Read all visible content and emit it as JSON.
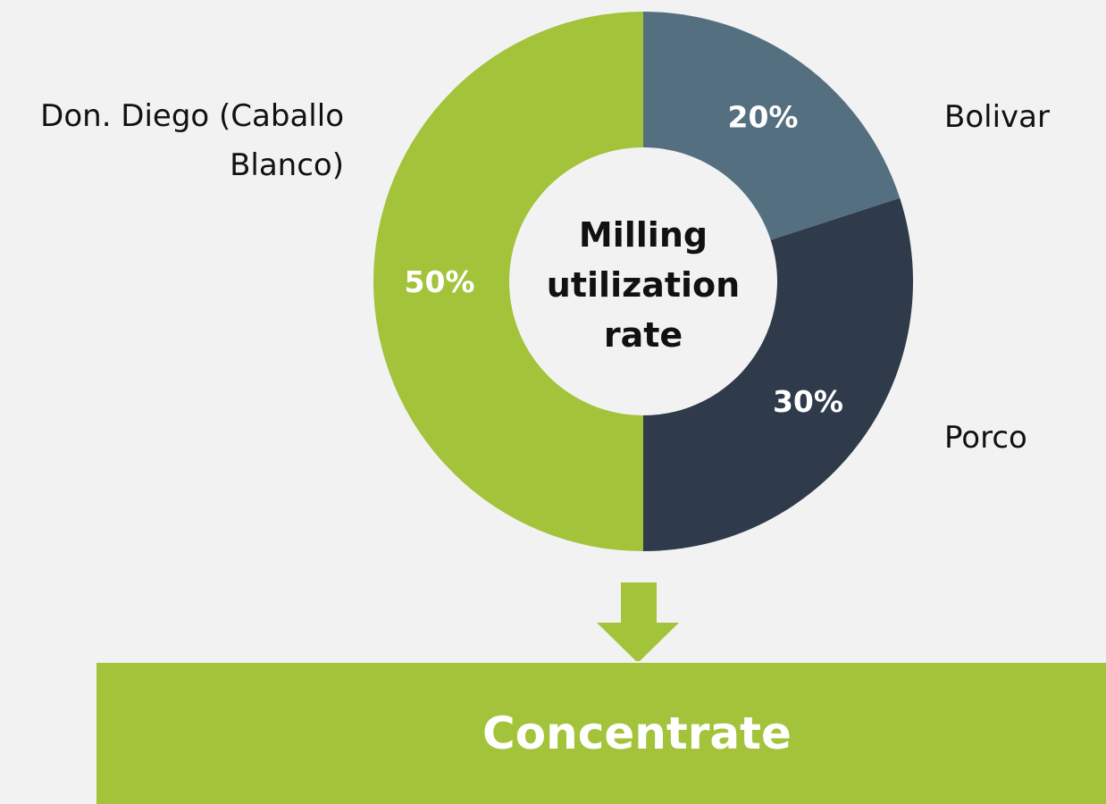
{
  "chart_data": {
    "type": "donut",
    "categories": [
      "Bolivar",
      "Porco",
      "Don. Diego (Caballo Blanco)"
    ],
    "values": [
      20,
      30,
      50
    ],
    "value_labels": [
      "20%",
      "30%",
      "50%"
    ],
    "colors": [
      "#546f80",
      "#2f3a4b",
      "#a2c33a"
    ],
    "center_label": "Milling utilization rate",
    "annotation": "Concentrate"
  }
}
